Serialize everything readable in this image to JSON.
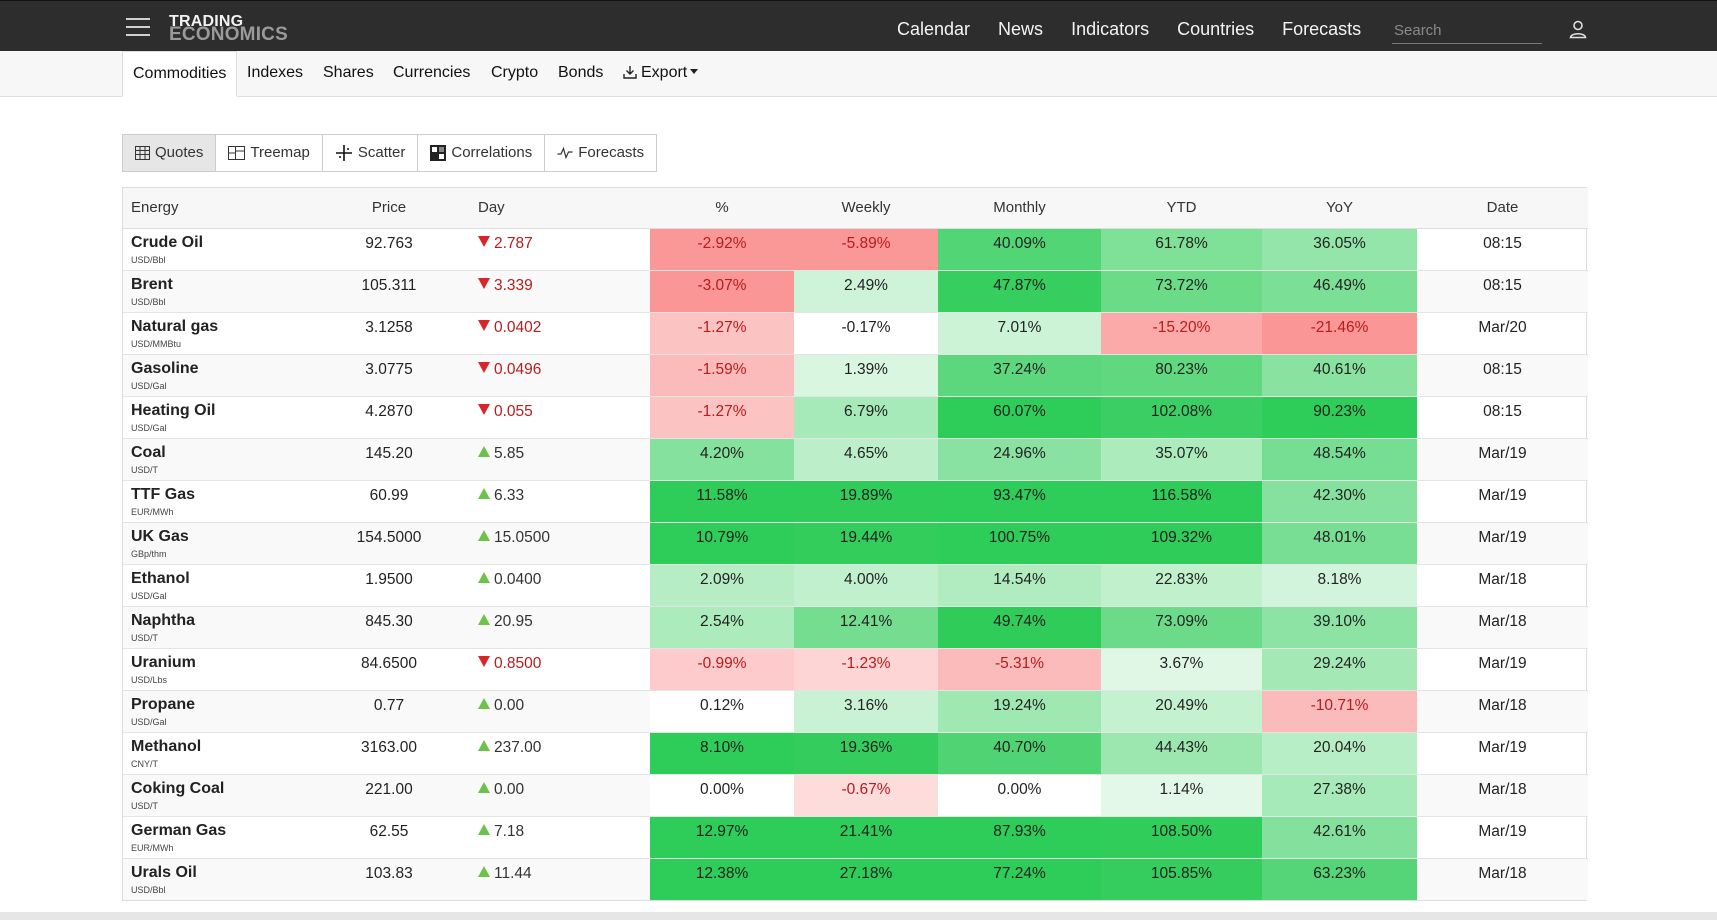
{
  "header": {
    "logo_line1": "TRADING",
    "logo_line2": "ECONOMICS",
    "nav": [
      "Calendar",
      "News",
      "Indicators",
      "Countries",
      "Forecasts"
    ],
    "search_placeholder": "Search"
  },
  "subnav": {
    "tabs": [
      "Commodities",
      "Indexes",
      "Shares",
      "Currencies",
      "Crypto",
      "Bonds"
    ],
    "export_label": "Export"
  },
  "views": [
    "Quotes",
    "Treemap",
    "Scatter",
    "Correlations",
    "Forecasts"
  ],
  "table": {
    "headers": [
      "Energy",
      "Price",
      "Day",
      "%",
      "Weekly",
      "Monthly",
      "YTD",
      "YoY",
      "Date"
    ],
    "rows": [
      {
        "name": "Crude Oil",
        "unit": "USD/Bbl",
        "price": "92.763",
        "dir": "down",
        "day": "2.787",
        "pct": "-2.92%",
        "weekly": "-5.89%",
        "monthly": "40.09%",
        "ytd": "61.78%",
        "yoy": "36.05%",
        "date": "08:15"
      },
      {
        "name": "Brent",
        "unit": "USD/Bbl",
        "price": "105.311",
        "dir": "down",
        "day": "3.339",
        "pct": "-3.07%",
        "weekly": "2.49%",
        "monthly": "47.87%",
        "ytd": "73.72%",
        "yoy": "46.49%",
        "date": "08:15"
      },
      {
        "name": "Natural gas",
        "unit": "USD/MMBtu",
        "price": "3.1258",
        "dir": "down",
        "day": "0.0402",
        "pct": "-1.27%",
        "weekly": "-0.17%",
        "monthly": "7.01%",
        "ytd": "-15.20%",
        "yoy": "-21.46%",
        "date": "Mar/20"
      },
      {
        "name": "Gasoline",
        "unit": "USD/Gal",
        "price": "3.0775",
        "dir": "down",
        "day": "0.0496",
        "pct": "-1.59%",
        "weekly": "1.39%",
        "monthly": "37.24%",
        "ytd": "80.23%",
        "yoy": "40.61%",
        "date": "08:15"
      },
      {
        "name": "Heating Oil",
        "unit": "USD/Gal",
        "price": "4.2870",
        "dir": "down",
        "day": "0.055",
        "pct": "-1.27%",
        "weekly": "6.79%",
        "monthly": "60.07%",
        "ytd": "102.08%",
        "yoy": "90.23%",
        "date": "08:15"
      },
      {
        "name": "Coal",
        "unit": "USD/T",
        "price": "145.20",
        "dir": "up",
        "day": "5.85",
        "pct": "4.20%",
        "weekly": "4.65%",
        "monthly": "24.96%",
        "ytd": "35.07%",
        "yoy": "48.54%",
        "date": "Mar/19"
      },
      {
        "name": "TTF Gas",
        "unit": "EUR/MWh",
        "price": "60.99",
        "dir": "up",
        "day": "6.33",
        "pct": "11.58%",
        "weekly": "19.89%",
        "monthly": "93.47%",
        "ytd": "116.58%",
        "yoy": "42.30%",
        "date": "Mar/19"
      },
      {
        "name": "UK Gas",
        "unit": "GBp/thm",
        "price": "154.5000",
        "dir": "up",
        "day": "15.0500",
        "pct": "10.79%",
        "weekly": "19.44%",
        "monthly": "100.75%",
        "ytd": "109.32%",
        "yoy": "48.01%",
        "date": "Mar/19"
      },
      {
        "name": "Ethanol",
        "unit": "USD/Gal",
        "price": "1.9500",
        "dir": "up",
        "day": "0.0400",
        "pct": "2.09%",
        "weekly": "4.00%",
        "monthly": "14.54%",
        "ytd": "22.83%",
        "yoy": "8.18%",
        "date": "Mar/18"
      },
      {
        "name": "Naphtha",
        "unit": "USD/T",
        "price": "845.30",
        "dir": "up",
        "day": "20.95",
        "pct": "2.54%",
        "weekly": "12.41%",
        "monthly": "49.74%",
        "ytd": "73.09%",
        "yoy": "39.10%",
        "date": "Mar/18"
      },
      {
        "name": "Uranium",
        "unit": "USD/Lbs",
        "price": "84.6500",
        "dir": "down",
        "day": "0.8500",
        "pct": "-0.99%",
        "weekly": "-1.23%",
        "monthly": "-5.31%",
        "ytd": "3.67%",
        "yoy": "29.24%",
        "date": "Mar/19"
      },
      {
        "name": "Propane",
        "unit": "USD/Gal",
        "price": "0.77",
        "dir": "up",
        "day": "0.00",
        "pct": "0.12%",
        "weekly": "3.16%",
        "monthly": "19.24%",
        "ytd": "20.49%",
        "yoy": "-10.71%",
        "date": "Mar/18"
      },
      {
        "name": "Methanol",
        "unit": "CNY/T",
        "price": "3163.00",
        "dir": "up",
        "day": "237.00",
        "pct": "8.10%",
        "weekly": "19.36%",
        "monthly": "40.70%",
        "ytd": "44.43%",
        "yoy": "20.04%",
        "date": "Mar/19"
      },
      {
        "name": "Coking Coal",
        "unit": "USD/T",
        "price": "221.00",
        "dir": "up",
        "day": "0.00",
        "pct": "0.00%",
        "weekly": "-0.67%",
        "monthly": "0.00%",
        "ytd": "1.14%",
        "yoy": "27.38%",
        "date": "Mar/18"
      },
      {
        "name": "German Gas",
        "unit": "EUR/MWh",
        "price": "62.55",
        "dir": "up",
        "day": "7.18",
        "pct": "12.97%",
        "weekly": "21.41%",
        "monthly": "87.93%",
        "ytd": "108.50%",
        "yoy": "42.61%",
        "date": "Mar/19"
      },
      {
        "name": "Urals Oil",
        "unit": "USD/Bbl",
        "price": "103.83",
        "dir": "up",
        "day": "11.44",
        "pct": "12.38%",
        "weekly": "27.18%",
        "monthly": "77.24%",
        "ytd": "105.85%",
        "yoy": "63.23%",
        "date": "Mar/18"
      }
    ]
  },
  "colors": {
    "topbar": "#2d2d2d",
    "down_arrow": "#d9252a",
    "up_arrow": "#6cc24a"
  }
}
